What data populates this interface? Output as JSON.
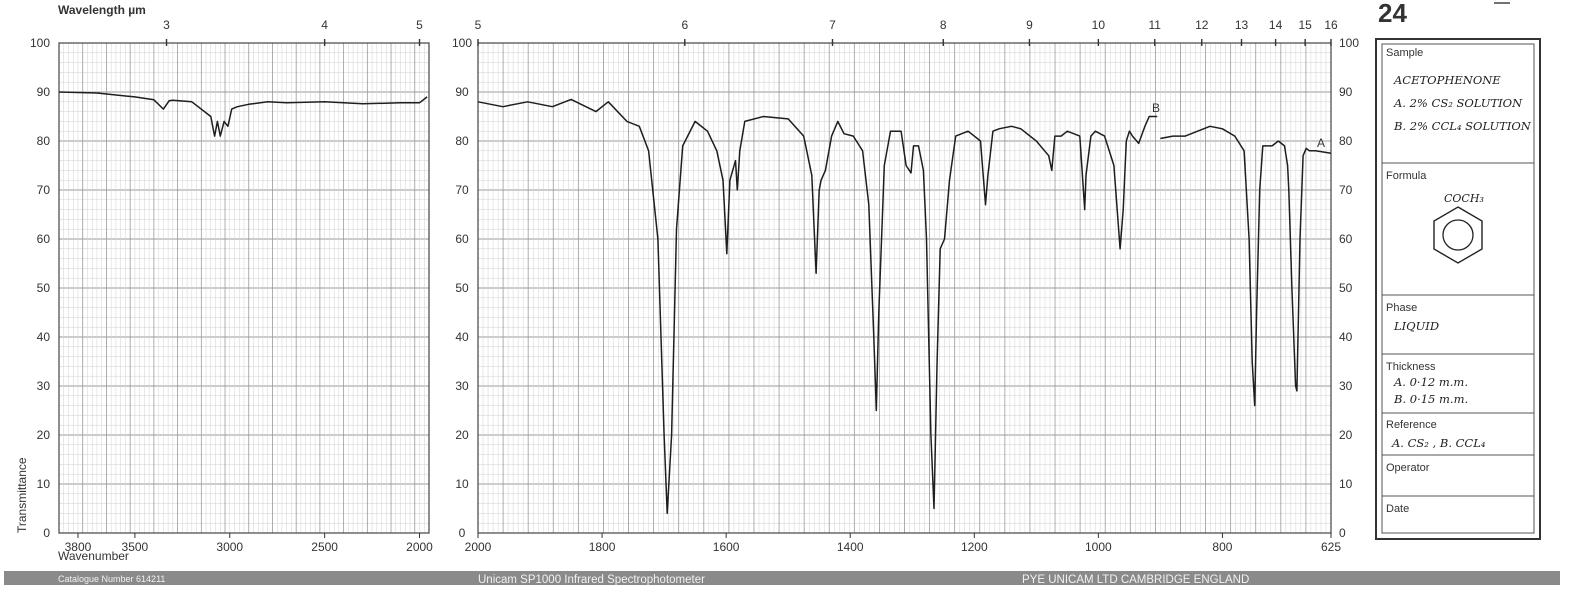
{
  "page": {
    "chart_number": "24",
    "footer": {
      "catalogue": "Catalogue Number 614211",
      "instrument": "Unicam SP1000 Infrared Spectrophotometer",
      "maker": "PYE UNICAM LTD CAMBRIDGE ENGLAND"
    }
  },
  "info_box": {
    "sample_label": "Sample",
    "sample_lines": [
      "ACETOPHENONE",
      "A. 2% CS₂ SOLUTION",
      "B. 2% CCL₄ SOLUTION"
    ],
    "formula_label": "Formula",
    "formula_text": "COCH₃",
    "phase_label": "Phase",
    "phase_value": "LIQUID",
    "thickness_label": "Thickness",
    "thickness_lines": [
      "A. 0·12 m.m.",
      "B. 0·15 m.m."
    ],
    "reference_label": "Reference",
    "reference_value": "A. CS₂ , B. CCL₄",
    "operator_label": "Operator",
    "operator_value": "",
    "date_label": "Date",
    "date_value": ""
  },
  "chart_data": {
    "type": "line",
    "title": "",
    "top_axis_label": "Wavelength µm",
    "xlabel": "Wavenumber",
    "ylabel": "Transmittance",
    "grid": true,
    "ylim": [
      0,
      100
    ],
    "y_ticks": [
      0,
      10,
      20,
      30,
      40,
      50,
      60,
      70,
      80,
      90,
      100
    ],
    "curve_labels": [
      "A",
      "B"
    ],
    "panels": [
      {
        "xlim": [
          3900,
          1950
        ],
        "wavenumber_ticks": [
          "3800",
          "3500",
          "3000",
          "2500",
          "2000"
        ],
        "wavelength_ticks": [
          "3",
          "4",
          "5"
        ],
        "series": [
          {
            "x": [
              3900,
              3700,
              3500,
              3400,
              3350,
              3320,
              3300,
              3200,
              3100,
              3080,
              3065,
              3050,
              3030,
              3010,
              2990,
              2960,
              2900,
              2800,
              2700,
              2500,
              2300,
              2100,
              2000,
              1960
            ],
            "y": [
              90,
              89.8,
              89,
              88.4,
              86.5,
              88.2,
              88.3,
              88,
              85,
              81,
              84,
              81,
              84,
              83,
              86.5,
              87,
              87.5,
              88,
              87.8,
              88,
              87.6,
              87.8,
              87.8,
              89
            ]
          }
        ]
      },
      {
        "xlim": [
          2000,
          625
        ],
        "wavenumber_ticks": [
          "2000",
          "1800",
          "1600",
          "1400",
          "1200",
          "1000",
          "800",
          "625"
        ],
        "wavelength_ticks": [
          "5",
          "6",
          "7",
          "8",
          "9",
          "10",
          "11",
          "12",
          "13",
          "14",
          "15",
          "16"
        ],
        "series": [
          {
            "x": [
              2000,
              1960,
              1920,
              1880,
              1850,
              1810,
              1790,
              1760,
              1740,
              1725,
              1710,
              1700,
              1695,
              1688,
              1680,
              1670,
              1650,
              1630,
              1615,
              1605,
              1599,
              1594,
              1585,
              1582,
              1578,
              1570,
              1540,
              1500,
              1475,
              1462,
              1455,
              1450,
              1447,
              1440,
              1430,
              1420,
              1410,
              1395,
              1380,
              1370,
              1362,
              1358,
              1354,
              1345,
              1335,
              1318,
              1310,
              1302,
              1298,
              1290,
              1282,
              1277,
              1270,
              1265,
              1260,
              1255,
              1248,
              1240,
              1230,
              1210,
              1190,
              1182,
              1178,
              1170,
              1160,
              1140,
              1125,
              1100,
              1080,
              1075,
              1070,
              1060,
              1050,
              1030,
              1022,
              1020,
              1012,
              1005,
              990,
              975,
              965,
              960,
              955,
              950,
              945,
              935,
              925,
              918,
              912,
              905
            ],
            "y": [
              88,
              87,
              88,
              87,
              88.5,
              86,
              88,
              84,
              83,
              78,
              60,
              20,
              4,
              20,
              62,
              79,
              84,
              82,
              78,
              72,
              57,
              72,
              76,
              70,
              78,
              84,
              85,
              84.5,
              81,
              73,
              53,
              70,
              72,
              74,
              81,
              84,
              81.5,
              81,
              78,
              67,
              40,
              25,
              45,
              75,
              82,
              82,
              75,
              73.5,
              79,
              79,
              74,
              60,
              20,
              5,
              35,
              58,
              60,
              72,
              81,
              82,
              80,
              67,
              73,
              82,
              82.5,
              83,
              82.5,
              80,
              77,
              74,
              81,
              81,
              82,
              81,
              66,
              73,
              81,
              82,
              81,
              75,
              58,
              66,
              80,
              82,
              81,
              79.5,
              83,
              85,
              85,
              85
            ]
          },
          {
            "x": [
              900,
              880,
              860,
              840,
              820,
              800,
              780,
              765,
              757,
              752,
              748,
              745,
              740,
              735,
              720,
              710,
              700,
              695,
              693,
              688,
              682,
              680,
              675,
              670,
              665,
              660,
              650,
              640,
              630,
              625
            ],
            "y": [
              80.5,
              81,
              81,
              82,
              83,
              82.5,
              81,
              78,
              60,
              35,
              26,
              45,
              70,
              79,
              79,
              80,
              79,
              75,
              70,
              50,
              30,
              29,
              60,
              77,
              78.5,
              78,
              78,
              77.8,
              77.6,
              77.5
            ]
          }
        ]
      }
    ]
  }
}
